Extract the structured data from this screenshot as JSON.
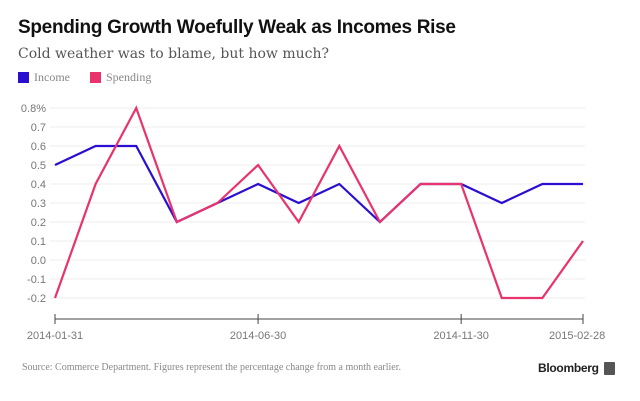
{
  "chart_data": {
    "type": "line",
    "title": "Spending Growth Woefully Weak as Incomes Rise",
    "subtitle": "Cold weather was to blame, but how much?",
    "xlabel": "",
    "ylabel": "",
    "x": [
      "2014-01-31",
      "2014-02-28",
      "2014-03-31",
      "2014-04-30",
      "2014-05-31",
      "2014-06-30",
      "2014-07-31",
      "2014-08-31",
      "2014-09-30",
      "2014-10-31",
      "2014-11-30",
      "2014-12-31",
      "2015-01-31",
      "2015-02-28"
    ],
    "x_tick_labels": [
      "2014-01-31",
      "2014-06-30",
      "2014-11-30",
      "2015-02-28"
    ],
    "x_tick_indices": [
      0,
      5,
      10,
      13
    ],
    "y_tick_labels": [
      "0.8%",
      "0.7",
      "0.6",
      "0.5",
      "0.4",
      "0.3",
      "0.2",
      "0.1",
      "0.0",
      "-0.1",
      "-0.2"
    ],
    "y_ticks": [
      0.8,
      0.7,
      0.6,
      0.5,
      0.4,
      0.3,
      0.2,
      0.1,
      0.0,
      -0.1,
      -0.2
    ],
    "ylim": [
      -0.2,
      0.8
    ],
    "grid": true,
    "legend_position": "top-left",
    "series": [
      {
        "name": "Income",
        "color": "#2a0fd0",
        "values": [
          0.5,
          0.6,
          0.6,
          0.2,
          0.3,
          0.4,
          0.3,
          0.4,
          0.2,
          0.4,
          0.4,
          0.3,
          0.4,
          0.4
        ]
      },
      {
        "name": "Spending",
        "color": "#e8336d",
        "values": [
          -0.2,
          0.4,
          0.8,
          0.2,
          0.3,
          0.5,
          0.2,
          0.6,
          0.2,
          0.4,
          0.4,
          -0.2,
          -0.2,
          0.1
        ]
      }
    ],
    "source": "Source: Commerce Department. Figures represent the percentage change from a month earlier."
  },
  "brand": "Bloomberg"
}
